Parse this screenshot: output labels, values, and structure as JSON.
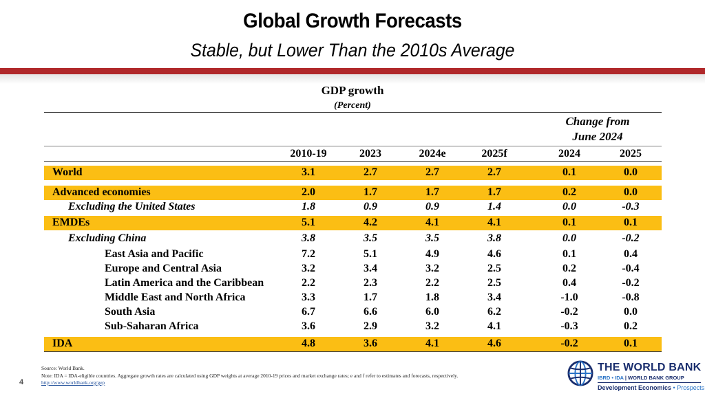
{
  "slide": {
    "title": "Global Growth Forecasts",
    "subtitle": "Stable, but Lower Than the 2010s Average",
    "page_number": "4"
  },
  "table": {
    "title": "GDP growth",
    "unit": "(Percent)",
    "change_header_line1": "Change from",
    "change_header_line2": "June 2024",
    "columns": [
      "2010-19",
      "2023",
      "2024e",
      "2025f",
      "2024",
      "2025"
    ],
    "rows": [
      {
        "label": "World",
        "values": [
          "3.1",
          "2.7",
          "2.7",
          "2.7",
          "0.1",
          "0.0"
        ]
      },
      {
        "label": "Advanced economies",
        "values": [
          "2.0",
          "1.7",
          "1.7",
          "1.7",
          "0.2",
          "0.0"
        ]
      },
      {
        "label": "Excluding the United States",
        "values": [
          "1.8",
          "0.9",
          "0.9",
          "1.4",
          "0.0",
          "-0.3"
        ]
      },
      {
        "label": "EMDEs",
        "values": [
          "5.1",
          "4.2",
          "4.1",
          "4.1",
          "0.1",
          "0.1"
        ]
      },
      {
        "label": "Excluding China",
        "values": [
          "3.8",
          "3.5",
          "3.5",
          "3.8",
          "0.0",
          "-0.2"
        ]
      },
      {
        "label": "East Asia and Pacific",
        "values": [
          "7.2",
          "5.1",
          "4.9",
          "4.6",
          "0.1",
          "0.4"
        ]
      },
      {
        "label": "Europe and Central Asia",
        "values": [
          "3.2",
          "3.4",
          "3.2",
          "2.5",
          "0.2",
          "-0.4"
        ]
      },
      {
        "label": "Latin America and the Caribbean",
        "values": [
          "2.2",
          "2.3",
          "2.2",
          "2.5",
          "0.4",
          "-0.2"
        ]
      },
      {
        "label": "Middle East and North Africa",
        "values": [
          "3.3",
          "1.7",
          "1.8",
          "3.4",
          "-1.0",
          "-0.8"
        ]
      },
      {
        "label": "South Asia",
        "values": [
          "6.7",
          "6.6",
          "6.0",
          "6.2",
          "-0.2",
          "0.0"
        ]
      },
      {
        "label": "Sub-Saharan Africa",
        "values": [
          "3.6",
          "2.9",
          "3.2",
          "4.1",
          "-0.3",
          "0.2"
        ]
      },
      {
        "label": "IDA",
        "values": [
          "4.8",
          "3.6",
          "4.1",
          "4.6",
          "-0.2",
          "0.1"
        ]
      }
    ]
  },
  "footer": {
    "source": "Source: World Bank.",
    "note": "Note: IDA = IDA-eligible countries. Aggregate growth rates are calculated using GDP weights at average 2010-19 prices and market exchange rates; e and f refer to estimates and forecasts, respectively.",
    "link": "http://www.worldbank.org/gep"
  },
  "logo": {
    "name": "THE WORLD BANK",
    "sub_ibrd": "IBRD • IDA",
    "sub_group": "WORLD BANK GROUP",
    "dev": "Development Economics",
    "prospects": "• Prospects"
  },
  "colors": {
    "accent_red": "#b0282a",
    "highlight_yellow": "#fbbe14",
    "logo_navy": "#1a2e6e"
  }
}
